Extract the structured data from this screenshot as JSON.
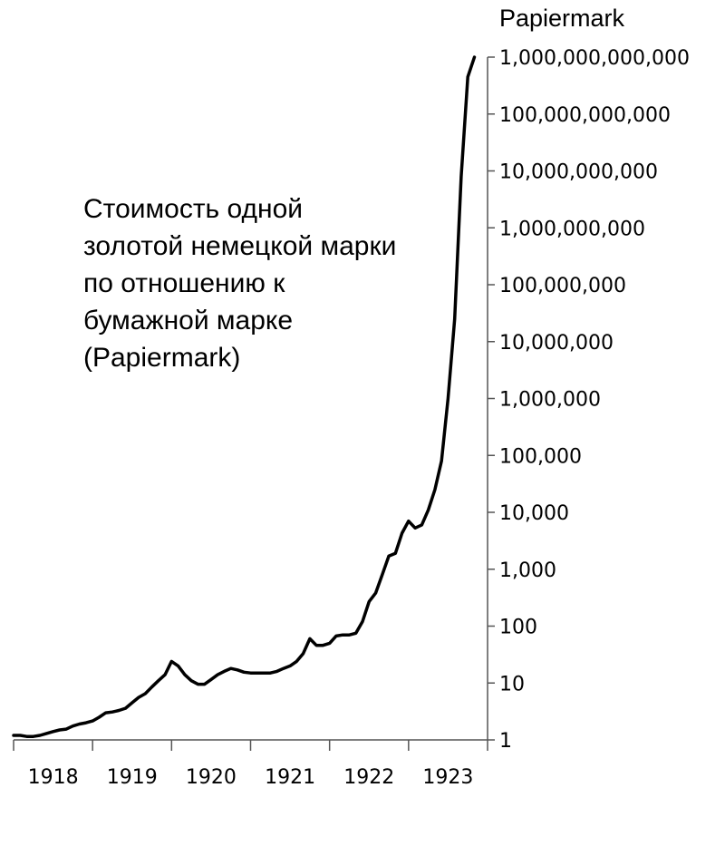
{
  "chart_data": {
    "type": "line",
    "y_unit_label": "Papiermark",
    "y_scale": "log10",
    "ylim": [
      1,
      1000000000000
    ],
    "y_ticks": [
      1,
      10,
      100,
      1000,
      10000,
      100000,
      1000000,
      10000000,
      100000000,
      1000000000,
      10000000000,
      100000000000,
      1000000000000
    ],
    "y_tick_labels": [
      "1",
      "10",
      "100",
      "1,000",
      "10,000",
      "100,000",
      "1,000,000",
      "10,000,000",
      "100,000,000",
      "1,000,000,000",
      "10,000,000,000",
      "100,000,000,000",
      "1,000,000,000,000"
    ],
    "xlim": [
      "1918-01",
      "1923-12"
    ],
    "x_ticks": [
      "1918-01",
      "1919-01",
      "1920-01",
      "1921-01",
      "1922-01",
      "1923-01",
      "1924-01"
    ],
    "x_tick_labels": [
      "1918",
      "1919",
      "1920",
      "1921",
      "1922",
      "1923"
    ],
    "annotation_lines": [
      "Стоимость одной",
      "золотой немецкой марки",
      "по отношению к",
      "бумажной марке",
      "(Papiermark)"
    ],
    "series": [
      {
        "color": "#000000",
        "points": [
          [
            "1918-01",
            1.2
          ],
          [
            "1918-02",
            1.2
          ],
          [
            "1918-03",
            1.15
          ],
          [
            "1918-04",
            1.15
          ],
          [
            "1918-05",
            1.2
          ],
          [
            "1918-06",
            1.3
          ],
          [
            "1918-07",
            1.4
          ],
          [
            "1918-08",
            1.5
          ],
          [
            "1918-09",
            1.55
          ],
          [
            "1918-10",
            1.75
          ],
          [
            "1918-11",
            1.9
          ],
          [
            "1918-12",
            2.0
          ],
          [
            "1919-01",
            2.15
          ],
          [
            "1919-02",
            2.5
          ],
          [
            "1919-03",
            3.0
          ],
          [
            "1919-04",
            3.1
          ],
          [
            "1919-05",
            3.3
          ],
          [
            "1919-06",
            3.6
          ],
          [
            "1919-07",
            4.5
          ],
          [
            "1919-08",
            5.6
          ],
          [
            "1919-09",
            6.5
          ],
          [
            "1919-10",
            8.5
          ],
          [
            "1919-11",
            11
          ],
          [
            "1919-12",
            14
          ],
          [
            "1920-01",
            24
          ],
          [
            "1920-02",
            20
          ],
          [
            "1920-03",
            14
          ],
          [
            "1920-04",
            11
          ],
          [
            "1920-05",
            9.5
          ],
          [
            "1920-06",
            9.5
          ],
          [
            "1920-07",
            11.5
          ],
          [
            "1920-08",
            14
          ],
          [
            "1920-09",
            16
          ],
          [
            "1920-10",
            18
          ],
          [
            "1920-11",
            17
          ],
          [
            "1920-12",
            15.5
          ],
          [
            "1921-01",
            15
          ],
          [
            "1921-02",
            15
          ],
          [
            "1921-03",
            15
          ],
          [
            "1921-04",
            15
          ],
          [
            "1921-05",
            16
          ],
          [
            "1921-06",
            18
          ],
          [
            "1921-07",
            20
          ],
          [
            "1921-08",
            24
          ],
          [
            "1921-09",
            33
          ],
          [
            "1921-10",
            60
          ],
          [
            "1921-11",
            46
          ],
          [
            "1921-12",
            46
          ],
          [
            "1922-01",
            50
          ],
          [
            "1922-02",
            67
          ],
          [
            "1922-03",
            70
          ],
          [
            "1922-04",
            70
          ],
          [
            "1922-05",
            75
          ],
          [
            "1922-06",
            120
          ],
          [
            "1922-07",
            270
          ],
          [
            "1922-08",
            380
          ],
          [
            "1922-09",
            800
          ],
          [
            "1922-10",
            1700
          ],
          [
            "1922-11",
            1900
          ],
          [
            "1922-12",
            4300
          ],
          [
            "1923-01",
            7000
          ],
          [
            "1923-02",
            5300
          ],
          [
            "1923-03",
            6000
          ],
          [
            "1923-04",
            11000
          ],
          [
            "1923-05",
            25000
          ],
          [
            "1923-06",
            80000
          ],
          [
            "1923-07",
            1000000
          ],
          [
            "1923-08",
            25000000
          ],
          [
            "1923-09",
            8000000000
          ],
          [
            "1923-10",
            450000000000
          ],
          [
            "1923-11",
            1000000000000
          ]
        ]
      }
    ]
  }
}
